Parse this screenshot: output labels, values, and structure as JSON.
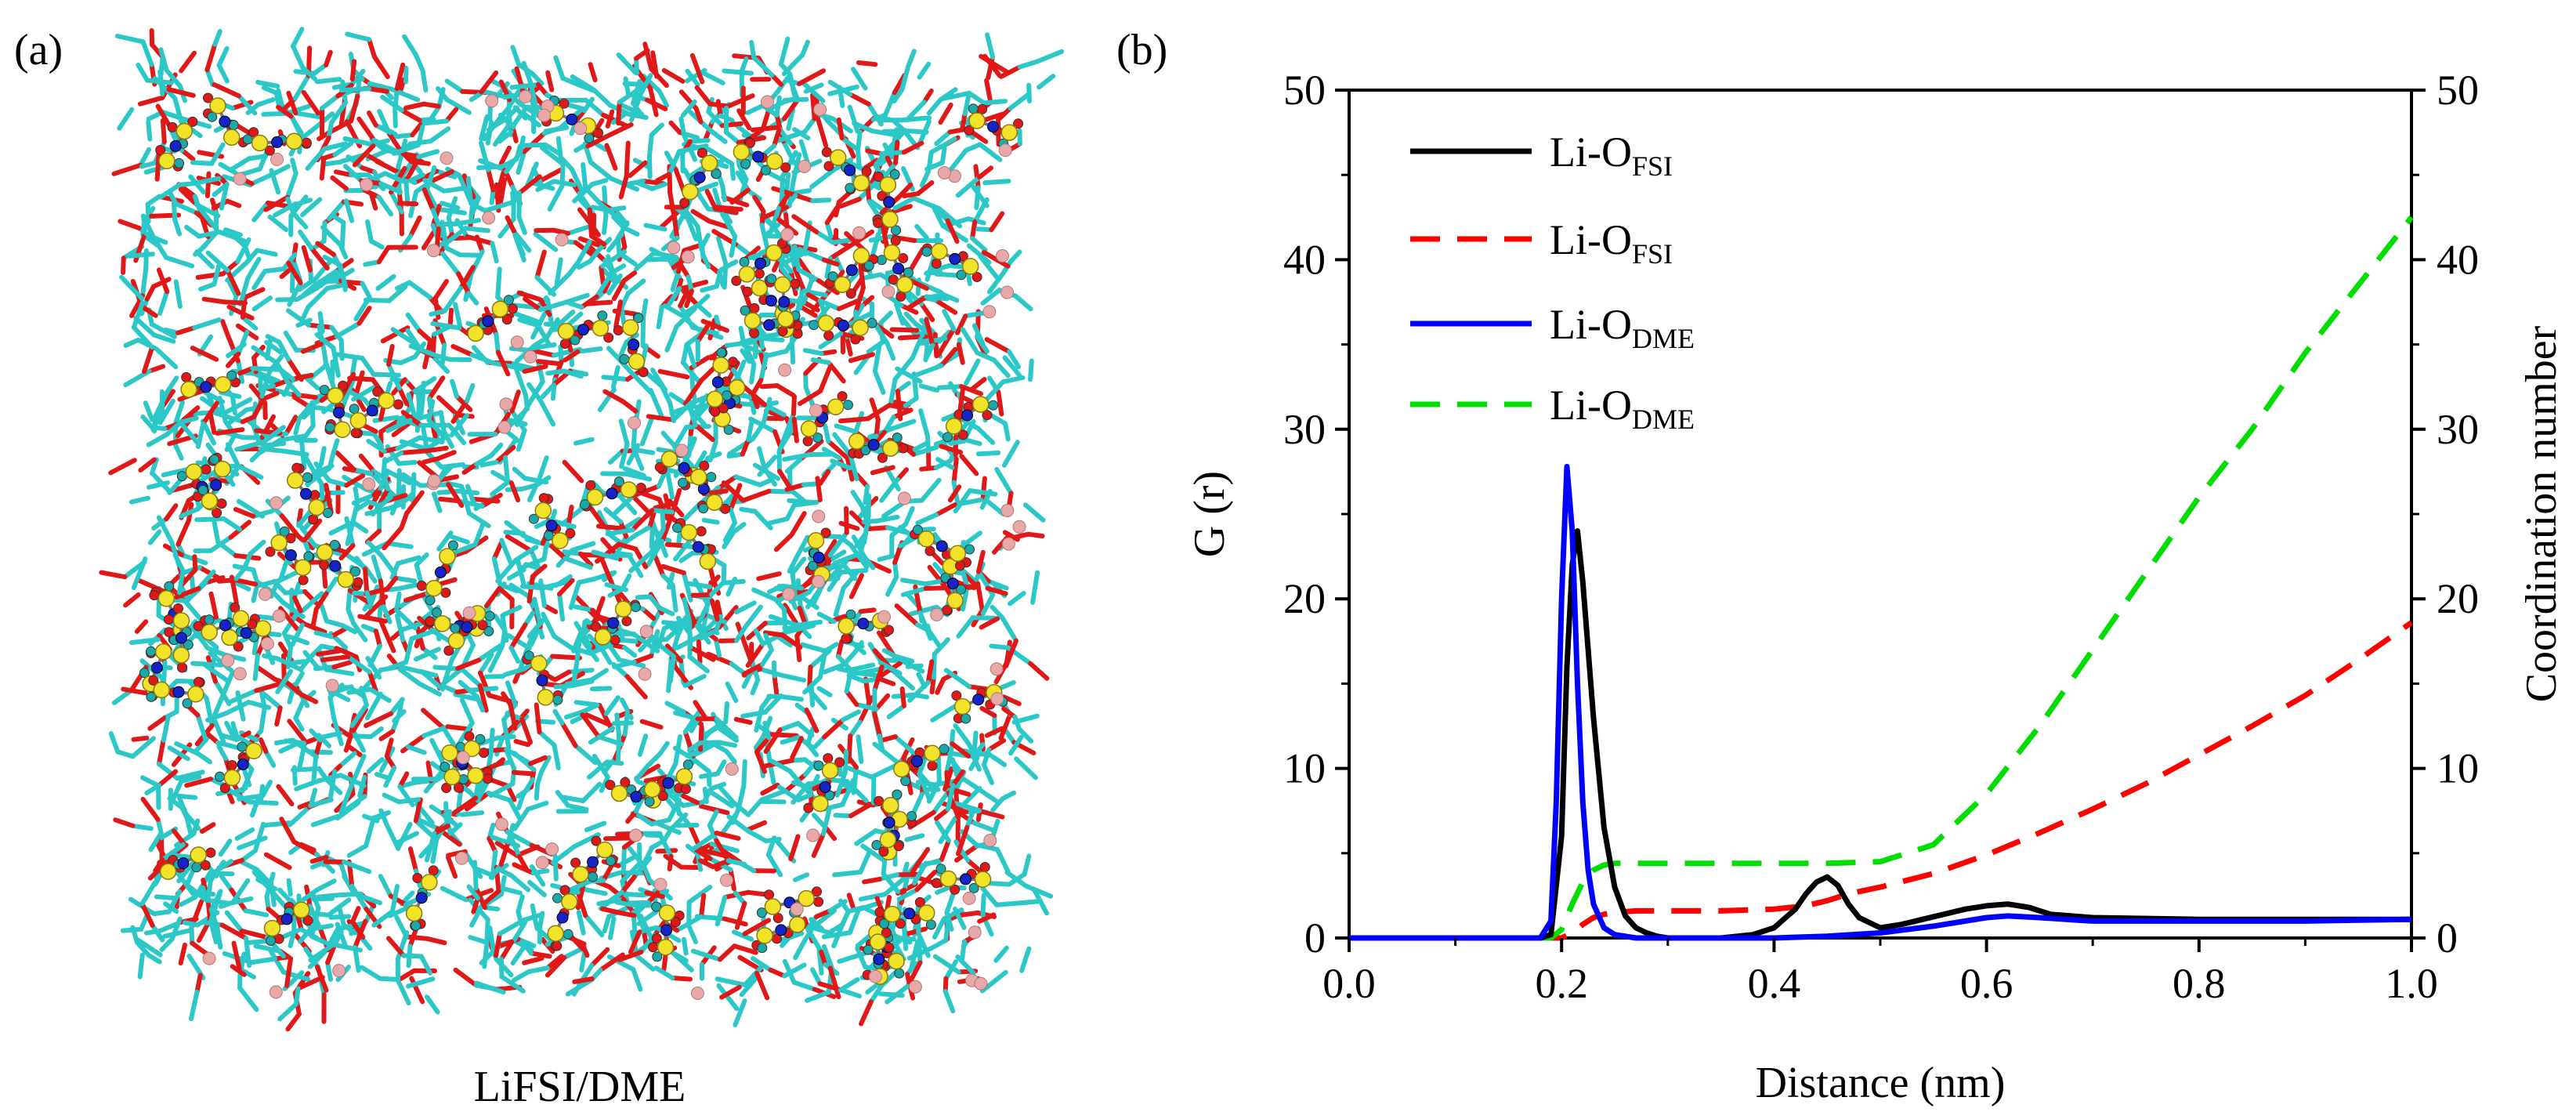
{
  "panels": {
    "a": {
      "label": "(a)",
      "caption": "LiFSI/DME"
    },
    "b": {
      "label": "(b)"
    }
  },
  "colors": {
    "dme_stick": "#2cc8c8",
    "oxygen": "#e01818",
    "sulfur": "#f2e22a",
    "nitrogen": "#1424c8",
    "fluorine": "#1aa8a8",
    "lithium": "#e8a8a8"
  },
  "chart_data": {
    "type": "line",
    "xlabel": "Distance (nm)",
    "ylabel": "G (r)",
    "y2label": "Coordination number",
    "xlim": [
      0.0,
      1.0
    ],
    "ylim": [
      0,
      50
    ],
    "y2lim": [
      0,
      50
    ],
    "xticks": [
      "0.0",
      "0.2",
      "0.4",
      "0.6",
      "0.8",
      "1.0"
    ],
    "yticks": [
      "0",
      "10",
      "20",
      "30",
      "40",
      "50"
    ],
    "y2ticks": [
      "0",
      "10",
      "20",
      "30",
      "40",
      "50"
    ],
    "legend_position": "top-left",
    "series": [
      {
        "name": "Li-O",
        "sub": "FSI",
        "color": "#000000",
        "style": "solid",
        "axis": "left",
        "x": [
          0.0,
          0.18,
          0.19,
          0.2,
          0.205,
          0.21,
          0.215,
          0.22,
          0.23,
          0.24,
          0.25,
          0.26,
          0.27,
          0.28,
          0.29,
          0.3,
          0.32,
          0.35,
          0.38,
          0.4,
          0.42,
          0.43,
          0.44,
          0.45,
          0.46,
          0.47,
          0.48,
          0.5,
          0.52,
          0.54,
          0.56,
          0.58,
          0.6,
          0.62,
          0.64,
          0.66,
          0.7,
          0.8,
          0.9,
          1.0
        ],
        "y": [
          0,
          0,
          0.2,
          6,
          16,
          22,
          24,
          21,
          13,
          6.5,
          3,
          1.3,
          0.6,
          0.3,
          0.1,
          0,
          0,
          0,
          0.2,
          0.6,
          1.7,
          2.6,
          3.3,
          3.6,
          3.1,
          2.0,
          1.2,
          0.6,
          0.8,
          1.1,
          1.4,
          1.7,
          1.9,
          2.0,
          1.8,
          1.4,
          1.2,
          1.1,
          1.1,
          1.1
        ]
      },
      {
        "name": "Li-O",
        "sub": "FSI",
        "color": "#ff0000",
        "style": "dashed",
        "axis": "right",
        "x": [
          0.0,
          0.2,
          0.21,
          0.22,
          0.23,
          0.24,
          0.25,
          0.27,
          0.3,
          0.35,
          0.4,
          0.43,
          0.45,
          0.47,
          0.5,
          0.55,
          0.6,
          0.65,
          0.7,
          0.75,
          0.8,
          0.85,
          0.9,
          0.95,
          1.0
        ],
        "y": [
          0,
          0,
          0.3,
          0.8,
          1.2,
          1.4,
          1.5,
          1.6,
          1.6,
          1.6,
          1.7,
          1.9,
          2.2,
          2.6,
          3.0,
          3.8,
          4.9,
          6.2,
          7.6,
          9.1,
          10.8,
          12.5,
          14.3,
          16.4,
          18.6
        ]
      },
      {
        "name": "Li-O",
        "sub": "DME",
        "color": "#0000ff",
        "style": "solid",
        "axis": "left",
        "x": [
          0.0,
          0.18,
          0.19,
          0.195,
          0.2,
          0.205,
          0.21,
          0.215,
          0.22,
          0.225,
          0.23,
          0.24,
          0.25,
          0.26,
          0.27,
          0.3,
          0.35,
          0.4,
          0.45,
          0.5,
          0.55,
          0.6,
          0.62,
          0.65,
          0.7,
          0.8,
          0.9,
          1.0
        ],
        "y": [
          0,
          0,
          1,
          8,
          20,
          27.8,
          24,
          15,
          8,
          4,
          2,
          0.6,
          0.2,
          0.1,
          0,
          0,
          0,
          0,
          0.1,
          0.3,
          0.7,
          1.2,
          1.3,
          1.2,
          1.0,
          1.0,
          1.0,
          1.1
        ]
      },
      {
        "name": "Li-O",
        "sub": "DME",
        "color": "#00dd00",
        "style": "dashed",
        "axis": "right",
        "x": [
          0.0,
          0.19,
          0.2,
          0.21,
          0.22,
          0.23,
          0.24,
          0.25,
          0.27,
          0.3,
          0.35,
          0.4,
          0.45,
          0.5,
          0.55,
          0.6,
          0.65,
          0.7,
          0.75,
          0.8,
          0.85,
          0.9,
          0.95,
          1.0
        ],
        "y": [
          0,
          0,
          0.5,
          2.0,
          3.3,
          4.0,
          4.3,
          4.4,
          4.4,
          4.4,
          4.4,
          4.4,
          4.4,
          4.5,
          5.5,
          8.5,
          12.5,
          17.0,
          21.5,
          26.0,
          30.0,
          34.5,
          38.5,
          42.5
        ]
      }
    ]
  }
}
